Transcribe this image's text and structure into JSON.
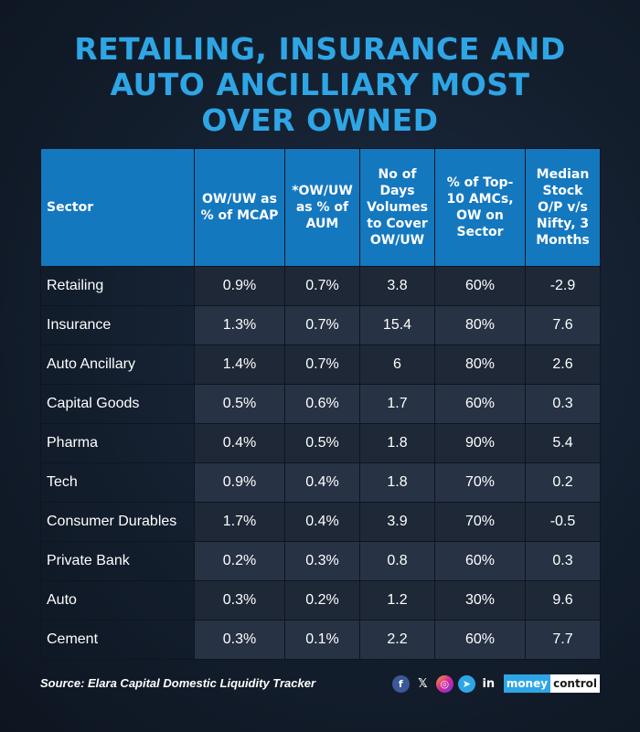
{
  "title_lines": [
    "RETAILING, INSURANCE AND",
    "AUTO ANCILLIARY MOST",
    "OVER OWNED"
  ],
  "table": {
    "headers": [
      [
        "Sector"
      ],
      [
        "OW/UW as",
        "% of MCAP"
      ],
      [
        "*OW/UW",
        "as % of",
        "AUM"
      ],
      [
        "No of",
        "Days",
        "Volumes",
        "to Cover",
        "OW/UW"
      ],
      [
        "% of Top-",
        "10 AMCs,",
        "OW on",
        "Sector"
      ],
      [
        "Median",
        "Stock",
        "O/P v/s",
        "Nifty, 3",
        "Months"
      ]
    ],
    "rows": [
      [
        "Retailing",
        "0.9%",
        "0.7%",
        "3.8",
        "60%",
        "-2.9"
      ],
      [
        "Insurance",
        "1.3%",
        "0.7%",
        "15.4",
        "80%",
        "7.6"
      ],
      [
        "Auto Ancillary",
        "1.4%",
        "0.7%",
        "6",
        "80%",
        "2.6"
      ],
      [
        "Capital Goods",
        "0.5%",
        "0.6%",
        "1.7",
        "60%",
        "0.3"
      ],
      [
        "Pharma",
        "0.4%",
        "0.5%",
        "1.8",
        "90%",
        "5.4"
      ],
      [
        "Tech",
        "0.9%",
        "0.4%",
        "1.8",
        "70%",
        "0.2"
      ],
      [
        "Consumer Durables",
        "1.7%",
        "0.4%",
        "3.9",
        "70%",
        "-0.5"
      ],
      [
        "Private Bank",
        "0.2%",
        "0.3%",
        "0.8",
        "60%",
        "0.3"
      ],
      [
        "Auto",
        "0.3%",
        "0.2%",
        "1.2",
        "30%",
        "9.6"
      ],
      [
        "Cement",
        "0.3%",
        "0.1%",
        "2.2",
        "60%",
        "7.7"
      ]
    ]
  },
  "footer": {
    "source": "Source: Elara Capital Domestic Liquidity Tracker",
    "social_icons": [
      "facebook-icon",
      "x-icon",
      "instagram-icon",
      "telegram-icon",
      "linkedin-icon"
    ],
    "social_glyphs": [
      "f",
      "𝕏",
      "◎",
      "➤",
      "in"
    ],
    "brand_part1": "money",
    "brand_part2": "control"
  },
  "colors": {
    "title": "#2ea6e6",
    "header_bg": "#1478bf",
    "row_odd": "#1e2837",
    "row_even": "#273244",
    "background": "#131e2d"
  }
}
